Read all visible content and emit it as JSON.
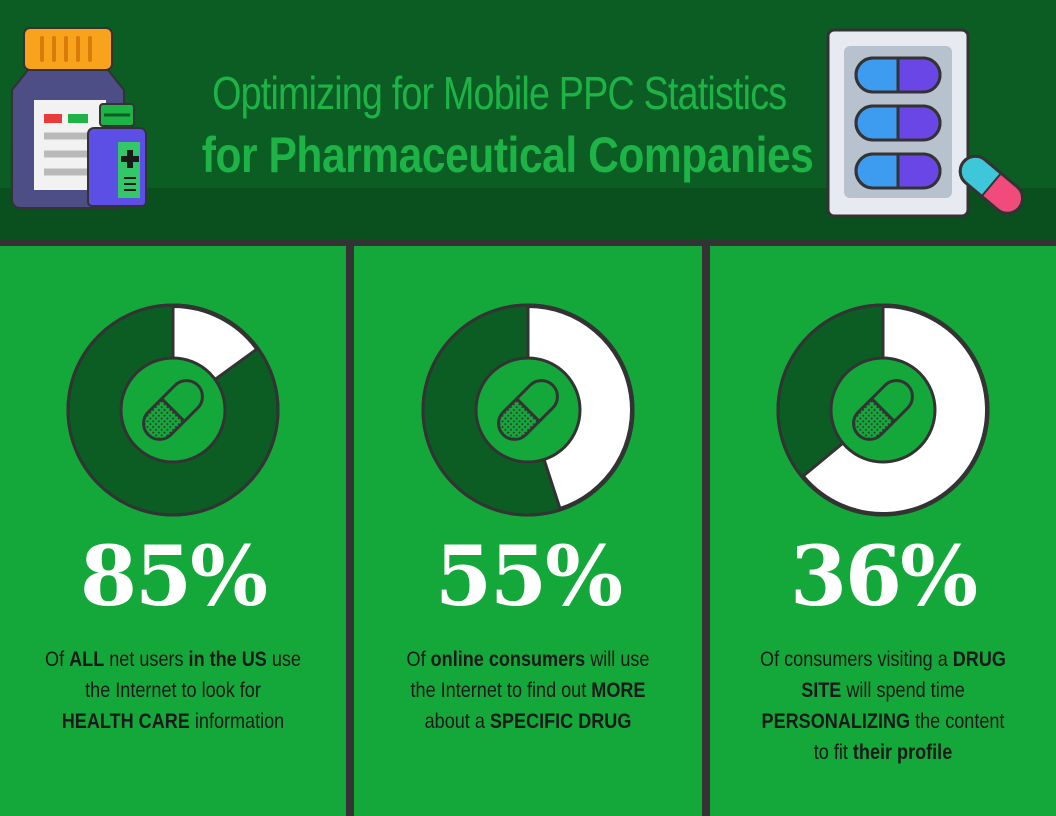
{
  "header": {
    "title_line1": "Optimizing for Mobile PPC Statistics",
    "title_line2": "for Pharmaceutical Companies",
    "icons": [
      "medicine-bottle-icon",
      "pill-blister-pack-icon",
      "capsule-icon"
    ]
  },
  "colors": {
    "header_bg": "#0b5d24",
    "title": "#1db346",
    "panel_bg": "#14a83b",
    "donut_dark": "#0b5d24",
    "donut_light": "#ffffff",
    "outline": "#333333"
  },
  "stats": [
    {
      "value": 85,
      "label": "85%",
      "parts": [
        {
          "t": "Of ",
          "b": false
        },
        {
          "t": "ALL",
          "b": true
        },
        {
          "t": " net users ",
          "b": false
        },
        {
          "t": "in the US",
          "b": true
        },
        {
          "t": " use",
          "b": false
        },
        {
          "t": "\nthe Internet to look for\n",
          "b": false
        },
        {
          "t": "HEALTH CARE",
          "b": true
        },
        {
          "t": " information",
          "b": false
        }
      ]
    },
    {
      "value": 55,
      "label": "55%",
      "parts": [
        {
          "t": "Of ",
          "b": false
        },
        {
          "t": "online consumers",
          "b": true
        },
        {
          "t": " will use",
          "b": false
        },
        {
          "t": "\nthe Internet to find out ",
          "b": false
        },
        {
          "t": "MORE",
          "b": true
        },
        {
          "t": "\nabout a ",
          "b": false
        },
        {
          "t": "SPECIFIC DRUG",
          "b": true
        }
      ]
    },
    {
      "value": 36,
      "label": "36%",
      "parts": [
        {
          "t": "Of consumers visiting a ",
          "b": false
        },
        {
          "t": "DRUG",
          "b": true
        },
        {
          "t": "\n",
          "b": false
        },
        {
          "t": "SITE",
          "b": true
        },
        {
          "t": " will spend time",
          "b": false
        },
        {
          "t": "\n",
          "b": false
        },
        {
          "t": "PERSONALIZING",
          "b": true
        },
        {
          "t": " the content",
          "b": false
        },
        {
          "t": "\nto fit ",
          "b": false
        },
        {
          "t": "their profile",
          "b": true
        }
      ]
    }
  ]
}
